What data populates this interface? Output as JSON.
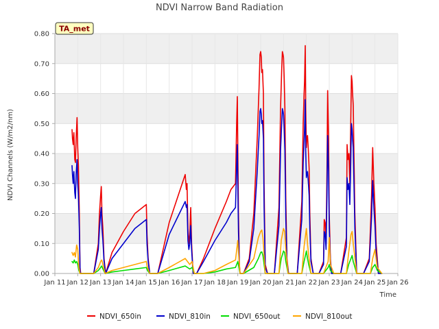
{
  "chart_data": {
    "type": "line",
    "title": "NDVI Narrow Band Radiation",
    "xlabel": "Time",
    "ylabel": "NDVI Channels (W/m2/nm)",
    "annotation": "TA_met",
    "xlim": [
      11,
      26
    ],
    "ylim": [
      0,
      0.8
    ],
    "xticks": [
      11,
      12,
      13,
      14,
      15,
      16,
      17,
      18,
      19,
      20,
      21,
      22,
      23,
      24,
      25,
      26
    ],
    "xtick_labels": [
      "Jan 11",
      "Jan 12",
      "Jan 13",
      "Jan 14",
      "Jan 15",
      "Jan 16",
      "Jan 17",
      "Jan 18",
      "Jan 19",
      "Jan 20",
      "Jan 21",
      "Jan 22",
      "Jan 23",
      "Jan 24",
      "Jan 25",
      "Jan 26"
    ],
    "yticks": [
      0,
      0.1,
      0.2,
      0.3,
      0.4,
      0.5,
      0.6,
      0.7,
      0.8
    ],
    "ytick_labels": [
      "0.00",
      "0.10",
      "0.20",
      "0.30",
      "0.40",
      "0.50",
      "0.60",
      "0.70",
      "0.80"
    ],
    "grid": true,
    "legend_position": "bottom",
    "series": [
      {
        "name": "NDVI_650in",
        "color": "#ee0000",
        "x": [
          11.75,
          11.77,
          11.8,
          11.83,
          11.87,
          11.9,
          11.93,
          11.97,
          12.0,
          12.03,
          12.07,
          12.1,
          12.13,
          12.2,
          12.7,
          12.9,
          12.95,
          13.0,
          13.03,
          13.06,
          13.1,
          13.15,
          13.22,
          13.5,
          14.0,
          14.5,
          15.0,
          15.03,
          15.08,
          15.15,
          15.3,
          15.5,
          16.0,
          16.7,
          16.75,
          16.78,
          16.82,
          16.86,
          16.9,
          16.94,
          16.98,
          17.02,
          17.05,
          17.1,
          17.2,
          17.5,
          18.0,
          18.5,
          18.7,
          18.9,
          18.95,
          18.98,
          19.0,
          19.03,
          19.07,
          19.1,
          19.15,
          19.25,
          19.5,
          19.7,
          19.85,
          19.93,
          19.97,
          20.0,
          20.03,
          20.05,
          20.08,
          20.12,
          20.15,
          20.2,
          20.3,
          20.6,
          20.8,
          20.87,
          20.92,
          20.95,
          20.98,
          21.0,
          21.03,
          21.06,
          21.1,
          21.15,
          21.22,
          21.3,
          21.6,
          21.8,
          21.86,
          21.9,
          21.92,
          21.95,
          21.97,
          22.0,
          22.02,
          22.05,
          22.08,
          22.12,
          22.15,
          22.2,
          22.3,
          22.55,
          22.75,
          22.78,
          22.82,
          22.86,
          22.9,
          22.93,
          22.97,
          23.0,
          23.05,
          23.1,
          23.2,
          23.5,
          23.75,
          23.78,
          23.82,
          23.86,
          23.9,
          23.94,
          23.97,
          24.0,
          24.02,
          24.05,
          24.08,
          24.12,
          24.2,
          24.5,
          24.75,
          24.8,
          24.85,
          24.9,
          24.95,
          25.0,
          25.05,
          25.15,
          25.3
        ],
        "y": [
          0.48,
          0.45,
          0.43,
          0.47,
          0.38,
          0.37,
          0.45,
          0.52,
          0.42,
          0.36,
          0.2,
          0.02,
          0.0,
          0.0,
          0.0,
          0.1,
          0.2,
          0.26,
          0.29,
          0.2,
          0.15,
          0.05,
          0.0,
          0.07,
          0.14,
          0.2,
          0.23,
          0.13,
          0.05,
          0.0,
          0.0,
          0.0,
          0.17,
          0.33,
          0.28,
          0.3,
          0.15,
          0.1,
          0.13,
          0.22,
          0.1,
          0.04,
          0.0,
          0.0,
          0.0,
          0.05,
          0.15,
          0.24,
          0.28,
          0.3,
          0.5,
          0.59,
          0.42,
          0.2,
          0.03,
          0.0,
          0.0,
          0.0,
          0.05,
          0.2,
          0.45,
          0.62,
          0.73,
          0.74,
          0.72,
          0.67,
          0.68,
          0.6,
          0.3,
          0.03,
          0.0,
          0.0,
          0.22,
          0.55,
          0.68,
          0.74,
          0.73,
          0.72,
          0.65,
          0.55,
          0.25,
          0.05,
          0.0,
          0.0,
          0.0,
          0.24,
          0.5,
          0.6,
          0.64,
          0.76,
          0.55,
          0.42,
          0.45,
          0.46,
          0.42,
          0.35,
          0.2,
          0.05,
          0.0,
          0.0,
          0.04,
          0.18,
          0.17,
          0.1,
          0.34,
          0.61,
          0.45,
          0.2,
          0.05,
          0.0,
          0.0,
          0.0,
          0.12,
          0.43,
          0.38,
          0.4,
          0.3,
          0.5,
          0.66,
          0.64,
          0.6,
          0.56,
          0.4,
          0.2,
          0.0,
          0.0,
          0.05,
          0.15,
          0.26,
          0.42,
          0.3,
          0.22,
          0.1,
          0.0,
          0.0
        ]
      },
      {
        "name": "NDVI_810in",
        "color": "#0000cc",
        "x": [
          11.75,
          11.77,
          11.8,
          11.83,
          11.87,
          11.9,
          11.93,
          11.97,
          12.0,
          12.03,
          12.07,
          12.1,
          12.13,
          12.2,
          12.7,
          12.9,
          12.95,
          13.0,
          13.03,
          13.06,
          13.1,
          13.15,
          13.22,
          13.5,
          14.0,
          14.5,
          15.0,
          15.03,
          15.08,
          15.15,
          15.3,
          15.5,
          16.0,
          16.7,
          16.75,
          16.78,
          16.82,
          16.86,
          16.9,
          16.94,
          16.98,
          17.02,
          17.05,
          17.1,
          17.2,
          17.5,
          18.0,
          18.5,
          18.7,
          18.9,
          18.95,
          18.98,
          19.0,
          19.03,
          19.07,
          19.1,
          19.15,
          19.25,
          19.5,
          19.7,
          19.85,
          19.93,
          19.97,
          20.0,
          20.03,
          20.05,
          20.08,
          20.12,
          20.15,
          20.2,
          20.3,
          20.6,
          20.8,
          20.87,
          20.92,
          20.95,
          20.98,
          21.0,
          21.03,
          21.06,
          21.1,
          21.15,
          21.22,
          21.3,
          21.6,
          21.8,
          21.86,
          21.9,
          21.92,
          21.95,
          21.97,
          22.0,
          22.02,
          22.05,
          22.08,
          22.12,
          22.15,
          22.2,
          22.3,
          22.55,
          22.75,
          22.78,
          22.82,
          22.86,
          22.9,
          22.93,
          22.97,
          23.0,
          23.05,
          23.1,
          23.2,
          23.5,
          23.75,
          23.78,
          23.82,
          23.86,
          23.9,
          23.94,
          23.97,
          24.0,
          24.02,
          24.05,
          24.08,
          24.12,
          24.2,
          24.5,
          24.75,
          24.8,
          24.85,
          24.9,
          24.95,
          25.0,
          25.05,
          25.15,
          25.3
        ],
        "y": [
          0.36,
          0.33,
          0.3,
          0.34,
          0.27,
          0.25,
          0.33,
          0.38,
          0.3,
          0.26,
          0.15,
          0.01,
          0.0,
          0.0,
          0.0,
          0.08,
          0.15,
          0.2,
          0.22,
          0.15,
          0.11,
          0.04,
          0.0,
          0.05,
          0.1,
          0.15,
          0.18,
          0.1,
          0.04,
          0.0,
          0.0,
          0.0,
          0.13,
          0.24,
          0.22,
          0.23,
          0.11,
          0.08,
          0.1,
          0.16,
          0.08,
          0.03,
          0.0,
          0.0,
          0.0,
          0.04,
          0.11,
          0.17,
          0.2,
          0.22,
          0.36,
          0.43,
          0.3,
          0.14,
          0.02,
          0.0,
          0.0,
          0.0,
          0.04,
          0.15,
          0.34,
          0.46,
          0.54,
          0.55,
          0.53,
          0.5,
          0.51,
          0.45,
          0.22,
          0.02,
          0.0,
          0.0,
          0.16,
          0.41,
          0.5,
          0.55,
          0.54,
          0.53,
          0.48,
          0.41,
          0.18,
          0.04,
          0.0,
          0.0,
          0.0,
          0.18,
          0.37,
          0.44,
          0.48,
          0.58,
          0.41,
          0.32,
          0.33,
          0.34,
          0.31,
          0.26,
          0.15,
          0.04,
          0.0,
          0.0,
          0.03,
          0.14,
          0.13,
          0.08,
          0.26,
          0.46,
          0.34,
          0.15,
          0.04,
          0.0,
          0.0,
          0.0,
          0.09,
          0.32,
          0.28,
          0.3,
          0.23,
          0.37,
          0.5,
          0.48,
          0.45,
          0.42,
          0.3,
          0.15,
          0.0,
          0.0,
          0.04,
          0.11,
          0.19,
          0.31,
          0.22,
          0.16,
          0.07,
          0.0,
          0.0
        ]
      },
      {
        "name": "NDVI_650out",
        "color": "#00dd00",
        "x": [
          11.75,
          11.8,
          11.85,
          11.9,
          11.95,
          12.0,
          12.05,
          12.1,
          12.2,
          12.7,
          12.9,
          13.0,
          13.05,
          13.1,
          13.2,
          13.5,
          14.0,
          14.5,
          15.0,
          15.05,
          15.15,
          15.5,
          16.0,
          16.7,
          16.8,
          16.9,
          17.0,
          17.1,
          17.5,
          18.0,
          18.5,
          18.9,
          19.0,
          19.05,
          19.1,
          19.25,
          19.7,
          19.9,
          20.0,
          20.05,
          20.1,
          20.2,
          20.8,
          20.9,
          21.0,
          21.05,
          21.1,
          21.2,
          21.8,
          21.9,
          22.0,
          22.05,
          22.1,
          22.2,
          22.75,
          22.85,
          22.95,
          23.0,
          23.05,
          23.2,
          23.75,
          23.85,
          23.95,
          24.0,
          24.05,
          24.2,
          24.8,
          24.9,
          25.0,
          25.1,
          25.3
        ],
        "y": [
          0.04,
          0.035,
          0.045,
          0.035,
          0.04,
          0.03,
          0.01,
          0.0,
          0.0,
          0.0,
          0.01,
          0.02,
          0.025,
          0.015,
          0.0,
          0.005,
          0.01,
          0.015,
          0.02,
          0.01,
          0.0,
          0.0,
          0.01,
          0.025,
          0.02,
          0.015,
          0.02,
          0.0,
          0.0,
          0.005,
          0.015,
          0.02,
          0.04,
          0.02,
          0.0,
          0.0,
          0.02,
          0.05,
          0.07,
          0.072,
          0.06,
          0.0,
          0.0,
          0.05,
          0.075,
          0.07,
          0.04,
          0.0,
          0.0,
          0.04,
          0.075,
          0.05,
          0.03,
          0.0,
          0.0,
          0.01,
          0.02,
          0.03,
          0.01,
          0.0,
          0.0,
          0.03,
          0.05,
          0.06,
          0.04,
          0.0,
          0.0,
          0.02,
          0.03,
          0.01,
          0.0
        ]
      },
      {
        "name": "NDVI_810out",
        "color": "#ffa500",
        "x": [
          11.75,
          11.8,
          11.85,
          11.9,
          11.95,
          12.0,
          12.05,
          12.1,
          12.2,
          12.7,
          12.9,
          13.0,
          13.05,
          13.1,
          13.2,
          13.5,
          14.0,
          14.5,
          15.0,
          15.05,
          15.15,
          15.5,
          16.0,
          16.7,
          16.8,
          16.9,
          17.0,
          17.1,
          17.5,
          18.0,
          18.5,
          18.9,
          19.0,
          19.05,
          19.1,
          19.25,
          19.7,
          19.9,
          20.0,
          20.05,
          20.1,
          20.2,
          20.8,
          20.9,
          21.0,
          21.05,
          21.1,
          21.2,
          21.8,
          21.9,
          22.0,
          22.05,
          22.1,
          22.2,
          22.75,
          22.85,
          22.95,
          23.0,
          23.05,
          23.2,
          23.75,
          23.85,
          23.95,
          24.0,
          24.05,
          24.2,
          24.8,
          24.9,
          25.0,
          25.1,
          25.3
        ],
        "y": [
          0.07,
          0.06,
          0.07,
          0.055,
          0.095,
          0.08,
          0.02,
          0.0,
          0.0,
          0.0,
          0.02,
          0.04,
          0.045,
          0.03,
          0.0,
          0.01,
          0.02,
          0.03,
          0.04,
          0.02,
          0.0,
          0.0,
          0.02,
          0.05,
          0.04,
          0.03,
          0.04,
          0.0,
          0.0,
          0.01,
          0.03,
          0.045,
          0.11,
          0.05,
          0.0,
          0.0,
          0.05,
          0.12,
          0.14,
          0.145,
          0.12,
          0.0,
          0.0,
          0.11,
          0.15,
          0.14,
          0.08,
          0.0,
          0.0,
          0.09,
          0.15,
          0.1,
          0.06,
          0.0,
          0.0,
          0.02,
          0.04,
          0.12,
          0.03,
          0.0,
          0.0,
          0.07,
          0.13,
          0.14,
          0.1,
          0.0,
          0.0,
          0.05,
          0.08,
          0.02,
          0.0
        ]
      }
    ]
  }
}
